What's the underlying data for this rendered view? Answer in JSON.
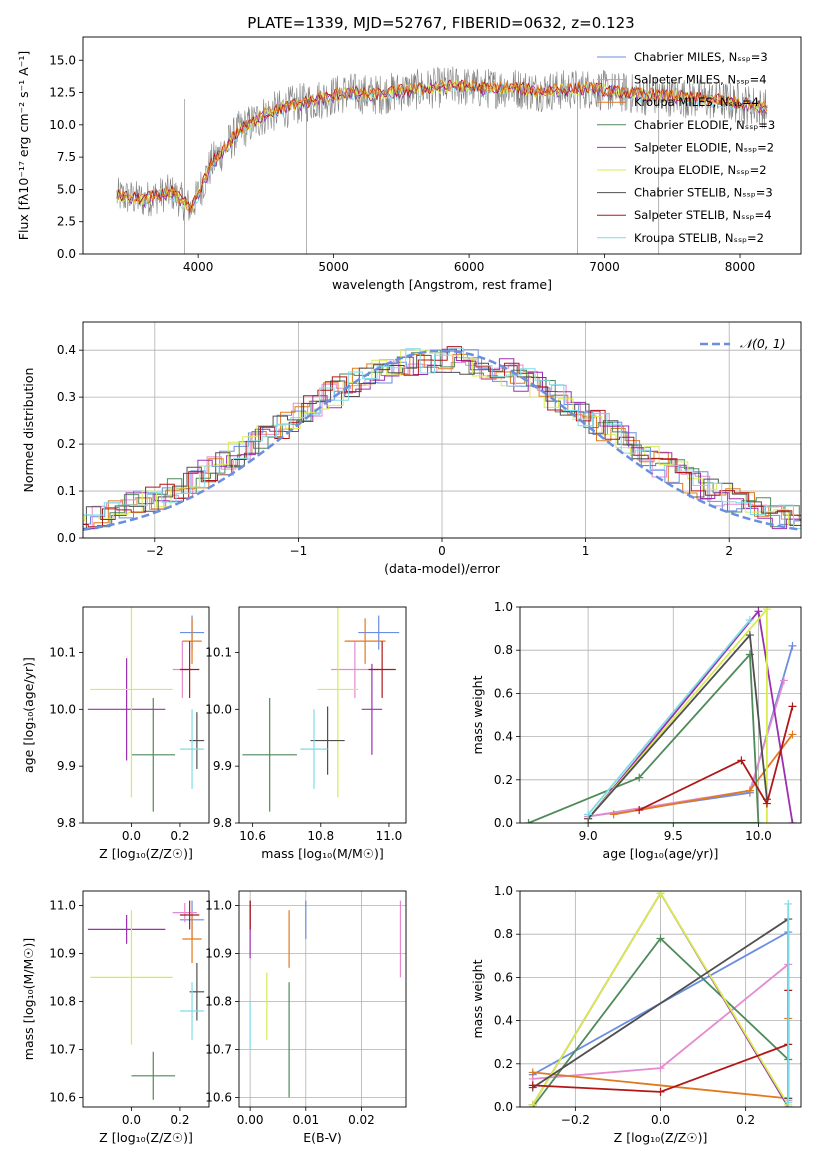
{
  "title": "PLATE=1339, MJD=52767, FIBERID=0632, z=0.123",
  "colors": {
    "chabrier_miles": "#6a8ee0",
    "salpeter_miles": "#e58ad0",
    "kroupa_miles": "#e07a20",
    "chabrier_elodie": "#4f8a5a",
    "salpeter_elodie": "#9a30b0",
    "kroupa_elodie": "#d8ec50",
    "chabrier_stelib": "#505050",
    "salpeter_stelib": "#b01818",
    "kroupa_stelib": "#7fdce6",
    "data_grey": "#808080",
    "normal_curve": "#6a8ee0"
  },
  "chart_data": [
    {
      "id": "spectrum",
      "type": "line",
      "xlabel": "wavelength [Angstrom, rest frame]",
      "ylabel": "Flux [fλ10⁻¹⁷ erg cm⁻² s⁻¹ A⁻¹]",
      "xlim": [
        3150,
        8450
      ],
      "ylim": [
        0,
        16.8
      ],
      "xticks": [
        "4000",
        "5000",
        "6000",
        "7000",
        "8000"
      ],
      "yticks": [
        "0.0",
        "2.5",
        "5.0",
        "7.5",
        "10.0",
        "12.5",
        "15.0"
      ],
      "x": [
        3400,
        3600,
        3800,
        3950,
        4100,
        4300,
        4500,
        4700,
        4900,
        5100,
        5300,
        5500,
        5700,
        5900,
        6100,
        6300,
        6500,
        6700,
        6900,
        7100,
        7300,
        7500,
        7700,
        7900,
        8100,
        8200
      ],
      "y": [
        4.5,
        4.2,
        4.8,
        3.5,
        7.0,
        9.5,
        10.8,
        11.5,
        12.0,
        12.5,
        12.3,
        12.6,
        12.8,
        13.0,
        12.8,
        12.9,
        12.6,
        12.7,
        12.8,
        12.5,
        12.3,
        12.2,
        12.0,
        11.8,
        11.5,
        11.2
      ],
      "legend": [
        {
          "label": "Chabrier MILES, Nₛₛₚ=3",
          "color": "#6a8ee0"
        },
        {
          "label": "Salpeter MILES, Nₛₛₚ=4",
          "color": "#e58ad0"
        },
        {
          "label": "Kroupa MILES, Nₛₛₚ=4",
          "color": "#e07a20"
        },
        {
          "label": "Chabrier ELODIE, Nₛₛₚ=3",
          "color": "#4f8a5a"
        },
        {
          "label": "Salpeter ELODIE, Nₛₛₚ=2",
          "color": "#9a30b0"
        },
        {
          "label": "Kroupa ELODIE, Nₛₛₚ=2",
          "color": "#d8ec50"
        },
        {
          "label": "Chabrier STELIB, Nₛₛₚ=3",
          "color": "#505050"
        },
        {
          "label": "Salpeter STELIB, Nₛₛₚ=4",
          "color": "#b01818"
        },
        {
          "label": "Kroupa STELIB, Nₛₛₚ=2",
          "color": "#7fdce6"
        }
      ]
    },
    {
      "id": "residuals",
      "type": "line",
      "xlabel": "(data-model)/error",
      "ylabel": "Normed distribution",
      "xlim": [
        -2.5,
        2.5
      ],
      "ylim": [
        0,
        0.46
      ],
      "xticks": [
        "−2",
        "−1",
        "0",
        "1",
        "2"
      ],
      "yticks": [
        "0.0",
        "0.1",
        "0.2",
        "0.3",
        "0.4"
      ],
      "grid": true,
      "legend_label": "𝒩(0, 1)",
      "legend_position": "top-right",
      "normal": {
        "mu": 0,
        "sigma": 1
      }
    },
    {
      "id": "age_vs_Z",
      "type": "scatter",
      "xlabel": "Z [log₁₀(Z/Z☉)]",
      "ylabel": "age  [log₁₀(age/yr)]",
      "xlim": [
        -0.2,
        0.32
      ],
      "ylim": [
        9.8,
        10.18
      ],
      "xticks": [
        0.0,
        0.2
      ],
      "yticks": [
        9.8,
        9.9,
        10.0,
        10.1
      ],
      "points": [
        {
          "model": "chabrier_miles",
          "x": 0.25,
          "y": 10.135,
          "xerr": 0.05,
          "yerr": 0.03
        },
        {
          "model": "salpeter_miles",
          "x": 0.21,
          "y": 10.07,
          "xerr": 0.04,
          "yerr": 0.05
        },
        {
          "model": "kroupa_miles",
          "x": 0.25,
          "y": 10.12,
          "xerr": 0.04,
          "yerr": 0.04
        },
        {
          "model": "chabrier_elodie",
          "x": 0.09,
          "y": 9.92,
          "xerr": 0.09,
          "yerr": 0.1
        },
        {
          "model": "salpeter_elodie",
          "x": -0.02,
          "y": 10.0,
          "xerr": 0.16,
          "yerr": 0.09
        },
        {
          "model": "kroupa_elodie",
          "x": 0.0,
          "y": 10.035,
          "xerr": 0.17,
          "yerr": 0.19
        },
        {
          "model": "chabrier_stelib",
          "x": 0.27,
          "y": 9.945,
          "xerr": 0.03,
          "yerr": 0.05
        },
        {
          "model": "salpeter_stelib",
          "x": 0.24,
          "y": 10.07,
          "xerr": 0.04,
          "yerr": 0.05
        },
        {
          "model": "kroupa_stelib",
          "x": 0.25,
          "y": 9.93,
          "xerr": 0.05,
          "yerr": 0.07
        }
      ]
    },
    {
      "id": "age_vs_mass",
      "type": "scatter",
      "xlabel": "mass [log₁₀(M/M☉)]",
      "ylabel": "",
      "xlim": [
        10.56,
        11.05
      ],
      "ylim": [
        9.8,
        10.18
      ],
      "xticks": [
        10.6,
        10.8,
        11.0
      ],
      "yticks": [
        9.8,
        9.9,
        10.0,
        10.1
      ],
      "points": [
        {
          "model": "chabrier_miles",
          "x": 10.97,
          "y": 10.135,
          "xerr": 0.06,
          "yerr": 0.03
        },
        {
          "model": "salpeter_miles",
          "x": 10.9,
          "y": 10.07,
          "xerr": 0.07,
          "yerr": 0.05
        },
        {
          "model": "kroupa_miles",
          "x": 10.93,
          "y": 10.12,
          "xerr": 0.06,
          "yerr": 0.04
        },
        {
          "model": "chabrier_elodie",
          "x": 10.65,
          "y": 9.92,
          "xerr": 0.08,
          "yerr": 0.1
        },
        {
          "model": "salpeter_elodie",
          "x": 10.95,
          "y": 10.0,
          "xerr": 0.03,
          "yerr": 0.08
        },
        {
          "model": "kroupa_elodie",
          "x": 10.85,
          "y": 10.035,
          "xerr": 0.06,
          "yerr": 0.19
        },
        {
          "model": "chabrier_stelib",
          "x": 10.82,
          "y": 9.945,
          "xerr": 0.05,
          "yerr": 0.06
        },
        {
          "model": "salpeter_stelib",
          "x": 10.98,
          "y": 10.07,
          "xerr": 0.04,
          "yerr": 0.05
        },
        {
          "model": "kroupa_stelib",
          "x": 10.78,
          "y": 9.93,
          "xerr": 0.04,
          "yerr": 0.07
        }
      ]
    },
    {
      "id": "weight_vs_age",
      "type": "line",
      "xlabel": "age  [log₁₀(age/yr)]",
      "ylabel": "mass weight",
      "xlim": [
        8.6,
        10.25
      ],
      "ylim": [
        0.0,
        1.0
      ],
      "xticks": [
        9.0,
        9.5,
        10.0
      ],
      "yticks": [
        0.0,
        0.2,
        0.4,
        0.6,
        0.8,
        1.0
      ],
      "grid": true,
      "series": [
        {
          "model": "chabrier_miles",
          "x": [
            9.0,
            9.95,
            10.2
          ],
          "y": [
            0.03,
            0.14,
            0.82
          ]
        },
        {
          "model": "salpeter_miles",
          "x": [
            9.0,
            9.95,
            10.15
          ],
          "y": [
            0.03,
            0.15,
            0.66
          ]
        },
        {
          "model": "kroupa_miles",
          "x": [
            9.15,
            9.95,
            10.2
          ],
          "y": [
            0.04,
            0.15,
            0.41
          ]
        },
        {
          "model": "chabrier_elodie",
          "x": [
            8.65,
            9.3,
            9.95,
            10.0,
            9.0
          ],
          "y": [
            0.0,
            0.21,
            0.78,
            0.0,
            0.0
          ]
        },
        {
          "model": "salpeter_elodie",
          "x": [
            9.0,
            10.0,
            10.2
          ],
          "y": [
            0.02,
            0.98,
            0.0
          ]
        },
        {
          "model": "kroupa_elodie",
          "x": [
            9.0,
            10.05,
            10.05
          ],
          "y": [
            0.02,
            0.99,
            0.0
          ]
        },
        {
          "model": "chabrier_stelib",
          "x": [
            9.0,
            9.95,
            10.05
          ],
          "y": [
            0.02,
            0.87,
            0.11
          ]
        },
        {
          "model": "salpeter_stelib",
          "x": [
            9.3,
            9.9,
            10.05,
            10.2
          ],
          "y": [
            0.06,
            0.29,
            0.09,
            0.54
          ]
        },
        {
          "model": "kroupa_stelib",
          "x": [
            9.0,
            9.95
          ],
          "y": [
            0.04,
            0.94
          ]
        }
      ]
    },
    {
      "id": "mass_vs_Z",
      "type": "scatter",
      "xlabel": "Z [log₁₀(Z/Z☉)]",
      "ylabel": "mass [log₁₀(M/M☉)]",
      "xlim": [
        -0.2,
        0.32
      ],
      "ylim": [
        10.58,
        11.03
      ],
      "xticks": [
        0.0,
        0.2
      ],
      "yticks": [
        10.6,
        10.7,
        10.8,
        10.9,
        11.0
      ],
      "points": [
        {
          "model": "chabrier_miles",
          "x": 0.25,
          "y": 10.97,
          "xerr": 0.05,
          "yerr": 0.04
        },
        {
          "model": "salpeter_miles",
          "x": 0.22,
          "y": 10.985,
          "xerr": 0.05,
          "yerr": 0.02
        },
        {
          "model": "kroupa_miles",
          "x": 0.25,
          "y": 10.93,
          "xerr": 0.04,
          "yerr": 0.05
        },
        {
          "model": "chabrier_elodie",
          "x": 0.09,
          "y": 10.645,
          "xerr": 0.09,
          "yerr": 0.05
        },
        {
          "model": "salpeter_elodie",
          "x": -0.02,
          "y": 10.95,
          "xerr": 0.16,
          "yerr": 0.03
        },
        {
          "model": "kroupa_elodie",
          "x": 0.0,
          "y": 10.85,
          "xerr": 0.17,
          "yerr": 0.14
        },
        {
          "model": "chabrier_stelib",
          "x": 0.27,
          "y": 10.82,
          "xerr": 0.03,
          "yerr": 0.06
        },
        {
          "model": "salpeter_stelib",
          "x": 0.24,
          "y": 10.98,
          "xerr": 0.04,
          "yerr": 0.03
        },
        {
          "model": "kroupa_stelib",
          "x": 0.25,
          "y": 10.78,
          "xerr": 0.05,
          "yerr": 0.06
        }
      ]
    },
    {
      "id": "mass_vs_ebv",
      "type": "scatter",
      "xlabel": "E(B-V)",
      "ylabel": "",
      "xlim": [
        -0.002,
        0.028
      ],
      "ylim": [
        10.58,
        11.03
      ],
      "xticks": [
        "0.00",
        "0.01",
        "0.02"
      ],
      "yticks": [
        10.6,
        10.7,
        10.8,
        10.9,
        11.0
      ],
      "grid": true,
      "points": [
        {
          "model": "chabrier_miles",
          "x": 0.01,
          "y": 10.97,
          "yerr": 0.04
        },
        {
          "model": "salpeter_miles",
          "x": 0.027,
          "y": 10.93,
          "yerr": 0.08
        },
        {
          "model": "kroupa_miles",
          "x": 0.007,
          "y": 10.93,
          "yerr": 0.06
        },
        {
          "model": "chabrier_elodie",
          "x": 0.007,
          "y": 10.72,
          "yerr": 0.12
        },
        {
          "model": "salpeter_elodie",
          "x": 0.0,
          "y": 10.95,
          "yerr": 0.06
        },
        {
          "model": "kroupa_elodie",
          "x": 0.003,
          "y": 10.79,
          "yerr": 0.07
        },
        {
          "model": "chabrier_stelib",
          "x": 0.0,
          "y": 10.98,
          "yerr": 0.03
        },
        {
          "model": "salpeter_stelib",
          "x": 0.0,
          "y": 10.98,
          "yerr": 0.03
        },
        {
          "model": "kroupa_stelib",
          "x": 0.0,
          "y": 10.75,
          "yerr": 0.05
        }
      ]
    },
    {
      "id": "weight_vs_Z",
      "type": "line",
      "xlabel": "Z [log₁₀(Z/Z☉)]",
      "ylabel": "mass weight",
      "xlim": [
        -0.33,
        0.33
      ],
      "ylim": [
        0.0,
        1.0
      ],
      "xticks": [
        "−0.2",
        "0.0",
        "0.2"
      ],
      "yticks": [
        0.0,
        0.2,
        0.4,
        0.6,
        0.8,
        1.0
      ],
      "grid": true,
      "series": [
        {
          "model": "chabrier_miles",
          "x": [
            -0.3,
            0.3,
            0.3
          ],
          "y": [
            0.15,
            0.81,
            0.03
          ]
        },
        {
          "model": "salpeter_miles",
          "x": [
            -0.3,
            0.0,
            0.3,
            0.3
          ],
          "y": [
            0.13,
            0.18,
            0.66,
            0.03
          ]
        },
        {
          "model": "kroupa_miles",
          "x": [
            -0.3,
            0.3,
            0.3
          ],
          "y": [
            0.16,
            0.04,
            0.41
          ]
        },
        {
          "model": "chabrier_elodie",
          "x": [
            -0.3,
            0.0,
            0.3
          ],
          "y": [
            0.0,
            0.78,
            0.22
          ]
        },
        {
          "model": "salpeter_elodie",
          "x": [
            -0.3,
            0.0,
            0.3
          ],
          "y": [
            0.01,
            0.99,
            0.0
          ]
        },
        {
          "model": "kroupa_elodie",
          "x": [
            -0.3,
            0.0,
            0.3
          ],
          "y": [
            0.01,
            0.99,
            0.01
          ]
        },
        {
          "model": "chabrier_stelib",
          "x": [
            -0.3,
            0.3,
            0.3
          ],
          "y": [
            0.09,
            0.87,
            0.04
          ]
        },
        {
          "model": "salpeter_stelib",
          "x": [
            -0.3,
            0.0,
            0.3,
            0.3
          ],
          "y": [
            0.1,
            0.07,
            0.29,
            0.54
          ]
        },
        {
          "model": "kroupa_stelib",
          "x": [
            0.3,
            0.3
          ],
          "y": [
            0.02,
            0.94
          ]
        }
      ]
    }
  ]
}
